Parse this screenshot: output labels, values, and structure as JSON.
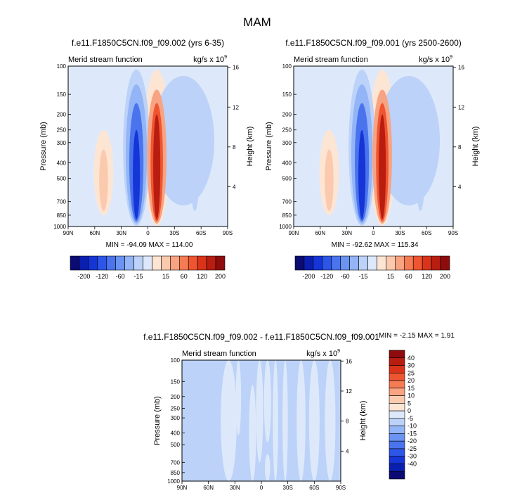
{
  "figure": {
    "title": "MAM"
  },
  "palettes": {
    "panel": [
      "#0b0b73",
      "#0a1fb0",
      "#1535d6",
      "#2d56e8",
      "#4a74ee",
      "#6a93f2",
      "#93b4f6",
      "#bcd2f8",
      "#dde9fb",
      "#fde5d4",
      "#fbcaae",
      "#f8a381",
      "#f57b55",
      "#ef5530",
      "#d93419",
      "#b81d10",
      "#8e0c0c"
    ],
    "diff": [
      "#0b0b73",
      "#0a1fb0",
      "#1535d6",
      "#2d56e8",
      "#4a74ee",
      "#6a93f2",
      "#93b4f6",
      "#bcd2f8",
      "#dde9fb",
      "#fde5d4",
      "#fbcaae",
      "#f8a381",
      "#f57b55",
      "#ef5530",
      "#d93419",
      "#b81d10",
      "#8e0c0c"
    ]
  },
  "chart_data": [
    {
      "type": "heatmap",
      "title": "f.e11.F1850C5CN.f09_f09.002 (yrs 6-35)",
      "left_label": "Merid stream function",
      "units": "kg/s x 10",
      "units_exp": "9",
      "xlabel": "",
      "ylabel": "Pressure (mb)",
      "ylabel_right": "Height (km)",
      "x_ticks": [
        "90N",
        "60N",
        "30N",
        "0",
        "30S",
        "60S",
        "90S"
      ],
      "y_ticks": [
        "100",
        "150",
        "200",
        "250",
        "300",
        "400",
        "500",
        "700",
        "850",
        "1000"
      ],
      "y_ticks_right": [
        "16",
        "12",
        "8",
        "4"
      ],
      "stats": "MIN = -94.09   MAX = 114.00",
      "min": -94.09,
      "max": 114.0,
      "colorbar_labels": [
        "-200",
        "-120",
        "-60",
        "-15",
        "15",
        "60",
        "120",
        "200"
      ],
      "colorbar_orientation": "horizontal",
      "features": [
        {
          "lat_center": -10,
          "lat_halfwidth": 4,
          "p_top": 200,
          "p_bottom": 900,
          "level": 7
        },
        {
          "lat_center": -10,
          "lat_halfwidth": 7,
          "p_top": 170,
          "p_bottom": 930,
          "level": 5
        },
        {
          "lat_center": -10,
          "lat_halfwidth": 11,
          "p_top": 140,
          "p_bottom": 960,
          "level": 3
        },
        {
          "lat_center": -10,
          "lat_halfwidth": 15,
          "p_top": 105,
          "p_bottom": 990,
          "level": 1
        },
        {
          "lat_center": 13,
          "lat_halfwidth": 4,
          "p_top": 250,
          "p_bottom": 900,
          "level": -6
        },
        {
          "lat_center": 13,
          "lat_halfwidth": 8,
          "p_top": 170,
          "p_bottom": 930,
          "level": -4
        },
        {
          "lat_center": 13,
          "lat_halfwidth": 12,
          "p_top": 130,
          "p_bottom": 960,
          "level": -2
        },
        {
          "lat_center": 13,
          "lat_halfwidth": 15,
          "p_top": 105,
          "p_bottom": 990,
          "level": -1
        },
        {
          "lat_center": 50,
          "lat_halfwidth": 11,
          "p_top": 250,
          "p_bottom": 850,
          "level": 1
        },
        {
          "lat_center": 50,
          "lat_halfwidth": 5,
          "p_top": 330,
          "p_bottom": 800,
          "level": 2
        },
        {
          "lat_center": -53,
          "lat_halfwidth": 5,
          "p_top": 270,
          "p_bottom": 800,
          "level": -1
        },
        {
          "lat_center": -40,
          "lat_halfwidth": 35,
          "p_top": 115,
          "p_bottom": 740,
          "level": -1
        }
      ]
    },
    {
      "type": "heatmap",
      "title": "f.e11.F1850C5CN.f09_f09.001 (yrs 2500-2600)",
      "left_label": "Merid stream function",
      "units": "kg/s x 10",
      "units_exp": "9",
      "xlabel": "",
      "ylabel": "Pressure (mb)",
      "ylabel_right": "Height (km)",
      "x_ticks": [
        "90N",
        "60N",
        "30N",
        "0",
        "30S",
        "60S",
        "90S"
      ],
      "y_ticks": [
        "100",
        "150",
        "200",
        "250",
        "300",
        "400",
        "500",
        "700",
        "850",
        "1000"
      ],
      "y_ticks_right": [
        "16",
        "12",
        "8",
        "4"
      ],
      "stats": "MIN = -92.62   MAX = 115.34",
      "min": -92.62,
      "max": 115.34,
      "colorbar_labels": [
        "-200",
        "-120",
        "-60",
        "-15",
        "15",
        "60",
        "120",
        "200"
      ],
      "colorbar_orientation": "horizontal",
      "features": [
        {
          "lat_center": -10,
          "lat_halfwidth": 4,
          "p_top": 200,
          "p_bottom": 900,
          "level": 7
        },
        {
          "lat_center": -10,
          "lat_halfwidth": 7,
          "p_top": 170,
          "p_bottom": 930,
          "level": 5
        },
        {
          "lat_center": -10,
          "lat_halfwidth": 11,
          "p_top": 140,
          "p_bottom": 960,
          "level": 3
        },
        {
          "lat_center": -10,
          "lat_halfwidth": 15,
          "p_top": 105,
          "p_bottom": 990,
          "level": 1
        },
        {
          "lat_center": 13,
          "lat_halfwidth": 4,
          "p_top": 250,
          "p_bottom": 900,
          "level": -6
        },
        {
          "lat_center": 13,
          "lat_halfwidth": 8,
          "p_top": 170,
          "p_bottom": 930,
          "level": -4
        },
        {
          "lat_center": 13,
          "lat_halfwidth": 12,
          "p_top": 130,
          "p_bottom": 960,
          "level": -2
        },
        {
          "lat_center": 13,
          "lat_halfwidth": 15,
          "p_top": 105,
          "p_bottom": 990,
          "level": -1
        },
        {
          "lat_center": 50,
          "lat_halfwidth": 11,
          "p_top": 250,
          "p_bottom": 850,
          "level": 1
        },
        {
          "lat_center": 50,
          "lat_halfwidth": 5,
          "p_top": 330,
          "p_bottom": 800,
          "level": 2
        },
        {
          "lat_center": -53,
          "lat_halfwidth": 5,
          "p_top": 270,
          "p_bottom": 800,
          "level": -1
        },
        {
          "lat_center": -40,
          "lat_halfwidth": 35,
          "p_top": 115,
          "p_bottom": 740,
          "level": -1
        }
      ]
    },
    {
      "type": "heatmap",
      "title": "f.e11.F1850C5CN.f09_f09.002 - f.e11.F1850C5CN.f09_f09.001",
      "left_label": "Merid stream function",
      "units": "kg/s x 10",
      "units_exp": "9",
      "xlabel": "",
      "ylabel": "Pressure (mb)",
      "ylabel_right": "Height (km)",
      "x_ticks": [
        "90N",
        "60N",
        "30N",
        "0",
        "30S",
        "60S",
        "90S"
      ],
      "y_ticks": [
        "100",
        "150",
        "200",
        "250",
        "300",
        "400",
        "500",
        "700",
        "850",
        "1000"
      ],
      "y_ticks_right": [
        "16",
        "12",
        "8",
        "4"
      ],
      "stats": "MIN =  -2.15   MAX =   1.91",
      "min": -2.15,
      "max": 1.91,
      "colorbar_labels": [
        "40",
        "30",
        "25",
        "20",
        "15",
        "10",
        "5",
        "0",
        "-5",
        "-10",
        "-15",
        "-20",
        "-25",
        "-30",
        "-40"
      ],
      "colorbar_orientation": "vertical",
      "features": [
        {
          "lat_center": 37,
          "lat_halfwidth": 9,
          "p_top": 100,
          "p_bottom": 1000,
          "level": 1
        },
        {
          "lat_center": 26,
          "lat_halfwidth": 3,
          "p_top": 100,
          "p_bottom": 420,
          "level": 1
        },
        {
          "lat_center": 10,
          "lat_halfwidth": 4,
          "p_top": 160,
          "p_bottom": 1000,
          "level": 1
        },
        {
          "lat_center": 2,
          "lat_halfwidth": 4,
          "p_top": 100,
          "p_bottom": 700,
          "level": 1
        },
        {
          "lat_center": -16,
          "lat_halfwidth": 3,
          "p_top": 100,
          "p_bottom": 1000,
          "level": 1
        },
        {
          "lat_center": -27,
          "lat_halfwidth": 3,
          "p_top": 100,
          "p_bottom": 1000,
          "level": 1
        },
        {
          "lat_center": -45,
          "lat_halfwidth": 5,
          "p_top": 100,
          "p_bottom": 1000,
          "level": 1
        },
        {
          "lat_center": -60,
          "lat_halfwidth": 6,
          "p_top": 100,
          "p_bottom": 1000,
          "level": 1
        },
        {
          "lat_center": -78,
          "lat_halfwidth": 6,
          "p_top": 100,
          "p_bottom": 1000,
          "level": 1
        },
        {
          "lat_center": -7,
          "lat_halfwidth": 4,
          "p_top": 100,
          "p_bottom": 480,
          "level": 1
        },
        {
          "lat_center": -7,
          "lat_halfwidth": 3,
          "p_top": 600,
          "p_bottom": 1000,
          "level": 1
        }
      ]
    }
  ]
}
